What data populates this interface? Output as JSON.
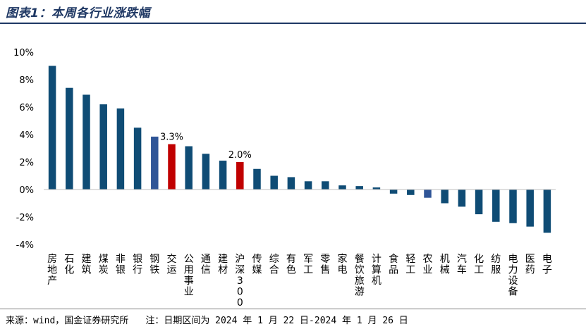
{
  "header": {
    "title": "图表1：本周各行业涨跌幅"
  },
  "footer": {
    "source": "来源：wind，国金证券研究所",
    "note": "注：日期区间为 2024 年 1 月 22 日-2024 年 1 月 26 日"
  },
  "colors": {
    "bar": "#0f4c75",
    "highlight_blue": "#2f5597",
    "highlight_red": "#c00000",
    "title": "#1f3864"
  },
  "chart_data": {
    "type": "bar",
    "title": "本周各行业涨跌幅",
    "xlabel": "",
    "ylabel": "",
    "ylim": [
      -4,
      10
    ],
    "yticks": [
      -4,
      -2,
      0,
      2,
      4,
      6,
      8,
      10
    ],
    "ytick_labels": [
      "-4%",
      "-2%",
      "0%",
      "2%",
      "4%",
      "6%",
      "8%",
      "10%"
    ],
    "categories": [
      "房地产",
      "石化",
      "建筑",
      "煤炭",
      "非银",
      "银行",
      "钢铁",
      "交运",
      "公用事业",
      "通信",
      "建材",
      "沪深300",
      "传媒",
      "综合",
      "有色",
      "军工",
      "零售",
      "家电",
      "餐饮旅游",
      "计算机",
      "食品",
      "轻工",
      "农业",
      "机械",
      "汽车",
      "化工",
      "纺服",
      "电力设备",
      "医药",
      "电子"
    ],
    "values": [
      9.0,
      7.4,
      6.9,
      6.2,
      5.9,
      4.5,
      3.85,
      3.3,
      3.15,
      2.6,
      2.1,
      2.0,
      1.5,
      1.0,
      0.9,
      0.6,
      0.6,
      0.3,
      0.25,
      0.15,
      -0.3,
      -0.4,
      -0.6,
      -1.0,
      -1.25,
      -1.8,
      -2.35,
      -2.45,
      -2.7,
      -3.15
    ],
    "bar_colors": [
      "bar",
      "bar",
      "bar",
      "bar",
      "bar",
      "bar",
      "highlight_blue",
      "highlight_red",
      "bar",
      "bar",
      "bar",
      "highlight_red",
      "bar",
      "bar",
      "bar",
      "bar",
      "bar",
      "bar",
      "bar",
      "bar",
      "bar",
      "bar",
      "highlight_blue",
      "bar",
      "bar",
      "bar",
      "bar",
      "bar",
      "bar",
      "bar"
    ],
    "data_labels": [
      {
        "category": "交运",
        "text": "3.3%"
      },
      {
        "category": "沪深300",
        "text": "2.0%"
      }
    ],
    "grid": false,
    "legend": "none"
  }
}
